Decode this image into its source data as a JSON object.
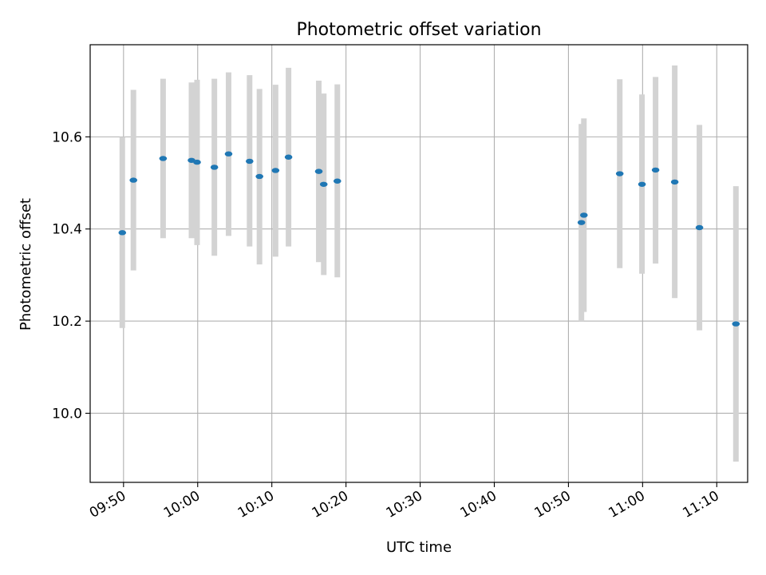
{
  "chart_data": {
    "type": "scatter",
    "title": "Photometric offset variation",
    "xlabel": "UTC time",
    "ylabel": "Photometric offset",
    "x_tick_labels": [
      "09:50",
      "10:00",
      "10:10",
      "10:20",
      "10:30",
      "10:40",
      "10:50",
      "11:00",
      "11:10"
    ],
    "y_tick_labels": [
      "10.0",
      "10.2",
      "10.4",
      "10.6"
    ],
    "xlim": [
      "09:45:30",
      "11:14:10"
    ],
    "ylim": [
      9.85,
      10.8
    ],
    "grid": true,
    "colors": {
      "point": "#1f77b4",
      "errorbar": "#d3d3d3",
      "grid": "#b0b0b0"
    },
    "series": [
      {
        "points": [
          {
            "x": "09:49:50",
            "y": 10.392,
            "ymin": 10.185,
            "ymax": 10.6
          },
          {
            "x": "09:51:20",
            "y": 10.506,
            "ymin": 10.31,
            "ymax": 10.702
          },
          {
            "x": "09:55:20",
            "y": 10.553,
            "ymin": 10.38,
            "ymax": 10.726
          },
          {
            "x": "09:59:10",
            "y": 10.549,
            "ymin": 10.38,
            "ymax": 10.718
          },
          {
            "x": "09:59:55",
            "y": 10.545,
            "ymin": 10.365,
            "ymax": 10.724
          },
          {
            "x": "10:02:15",
            "y": 10.534,
            "ymin": 10.342,
            "ymax": 10.726
          },
          {
            "x": "10:04:10",
            "y": 10.563,
            "ymin": 10.385,
            "ymax": 10.74
          },
          {
            "x": "10:07:00",
            "y": 10.547,
            "ymin": 10.362,
            "ymax": 10.734
          },
          {
            "x": "10:08:20",
            "y": 10.514,
            "ymin": 10.323,
            "ymax": 10.704
          },
          {
            "x": "10:10:30",
            "y": 10.527,
            "ymin": 10.34,
            "ymax": 10.713
          },
          {
            "x": "10:12:15",
            "y": 10.556,
            "ymin": 10.362,
            "ymax": 10.75
          },
          {
            "x": "10:16:20",
            "y": 10.525,
            "ymin": 10.328,
            "ymax": 10.722
          },
          {
            "x": "10:17:00",
            "y": 10.497,
            "ymin": 10.3,
            "ymax": 10.694
          },
          {
            "x": "10:18:50",
            "y": 10.504,
            "ymin": 10.295,
            "ymax": 10.714
          },
          {
            "x": "10:51:45",
            "y": 10.414,
            "ymin": 10.2,
            "ymax": 10.628
          },
          {
            "x": "10:52:05",
            "y": 10.43,
            "ymin": 10.22,
            "ymax": 10.64
          },
          {
            "x": "10:56:55",
            "y": 10.52,
            "ymin": 10.315,
            "ymax": 10.725
          },
          {
            "x": "10:59:55",
            "y": 10.497,
            "ymin": 10.303,
            "ymax": 10.692
          },
          {
            "x": "11:01:45",
            "y": 10.528,
            "ymin": 10.325,
            "ymax": 10.73
          },
          {
            "x": "11:04:20",
            "y": 10.502,
            "ymin": 10.25,
            "ymax": 10.755
          },
          {
            "x": "11:07:40",
            "y": 10.403,
            "ymin": 10.18,
            "ymax": 10.626
          },
          {
            "x": "11:12:35",
            "y": 10.194,
            "ymin": 9.895,
            "ymax": 10.493
          }
        ]
      }
    ]
  }
}
